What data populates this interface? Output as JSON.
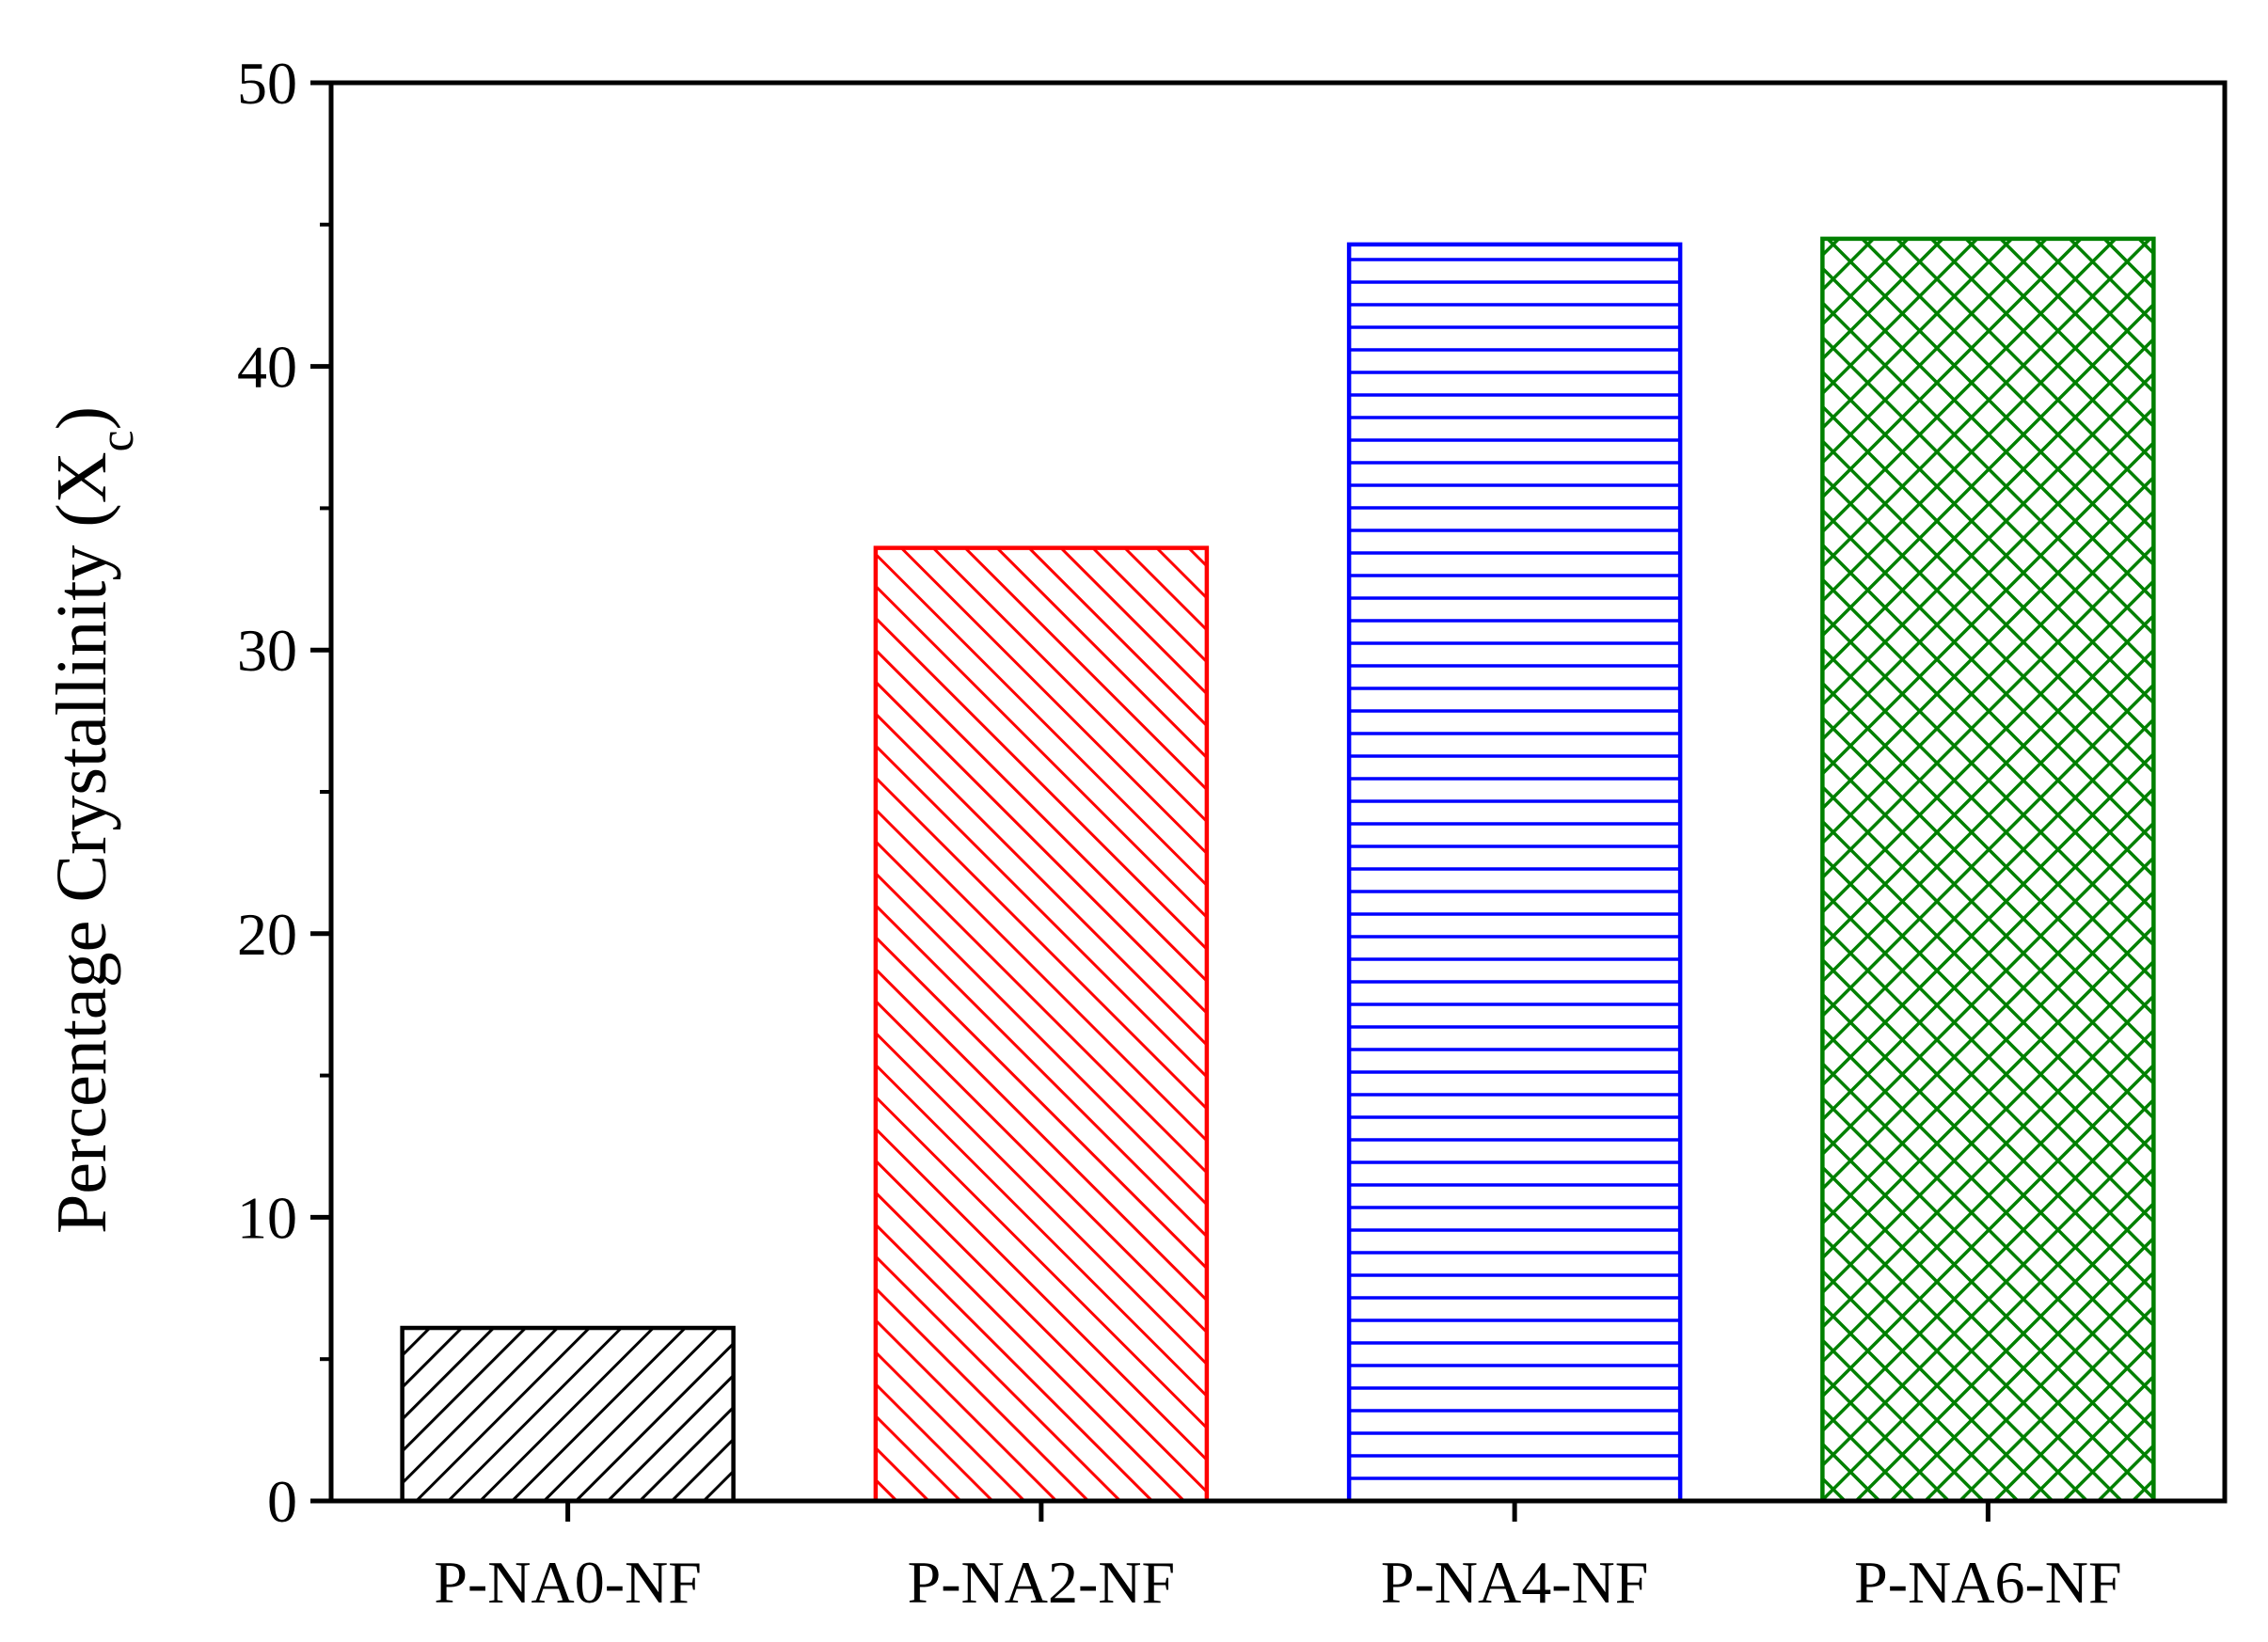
{
  "chart_data": {
    "type": "bar",
    "categories": [
      "P-NA0-NF",
      "P-NA2-NF",
      "P-NA4-NF",
      "P-NA6-NF"
    ],
    "values": [
      6.1,
      33.6,
      44.3,
      44.5
    ],
    "ylabel": "Percentage Crystallinity (X",
    "ylabel_sub": "c",
    "ylabel_close": ")",
    "ylim": [
      0,
      50
    ],
    "yticks": [
      0,
      10,
      20,
      30,
      40,
      50
    ],
    "ytick_labels": [
      "0",
      "10",
      "20",
      "30",
      "40",
      "50"
    ],
    "bar_colors": [
      "#000000",
      "#ff0000",
      "#0000ff",
      "#008000"
    ],
    "bar_patterns": [
      "diagonal-up",
      "diagonal-down",
      "horizontal",
      "crosshatch"
    ],
    "grid": false,
    "legend": "none"
  }
}
